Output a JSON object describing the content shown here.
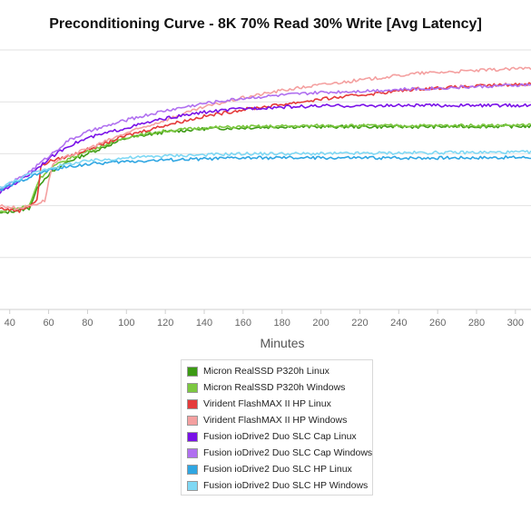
{
  "chart_data": {
    "type": "line",
    "title": "Preconditioning Curve - 8K 70% Read 30% Write [Avg Latency]",
    "xlabel": "Minutes",
    "ylabel": "",
    "x_ticks": [
      40,
      60,
      80,
      100,
      120,
      140,
      160,
      180,
      200,
      220,
      240,
      260,
      280,
      300
    ],
    "xlim": [
      35,
      308
    ],
    "ylim": [
      0,
      5
    ],
    "y_gridlines": [
      1,
      2,
      3,
      4,
      5
    ],
    "grid": "horizontal",
    "legend_position": "bottom",
    "series": [
      {
        "name": "Micron RealSSD P320h Linux",
        "color": "#3c9a14",
        "x": [
          35,
          50,
          55,
          60,
          70,
          80,
          100,
          120,
          140,
          160,
          180,
          200,
          250,
          308
        ],
        "y": [
          1.85,
          1.95,
          2.4,
          2.6,
          2.85,
          3.0,
          3.3,
          3.42,
          3.48,
          3.5,
          3.52,
          3.52,
          3.52,
          3.53
        ]
      },
      {
        "name": "Micron RealSSD P320h Windows",
        "color": "#7cc840",
        "x": [
          35,
          50,
          55,
          60,
          70,
          80,
          100,
          120,
          140,
          160,
          180,
          200,
          250,
          308
        ],
        "y": [
          1.88,
          2.0,
          2.5,
          2.7,
          2.9,
          3.05,
          3.32,
          3.44,
          3.5,
          3.52,
          3.53,
          3.54,
          3.54,
          3.55
        ]
      },
      {
        "name": "Virident FlashMAX II HP Linux",
        "color": "#e53a3a",
        "x": [
          35,
          45,
          50,
          54,
          56,
          60,
          70,
          80,
          100,
          120,
          140,
          160,
          180,
          200,
          250,
          308
        ],
        "y": [
          1.95,
          1.9,
          2.0,
          2.1,
          2.75,
          2.85,
          2.95,
          3.08,
          3.35,
          3.55,
          3.72,
          3.85,
          3.95,
          4.05,
          4.25,
          4.35
        ]
      },
      {
        "name": "Virident FlashMAX II HP Windows",
        "color": "#f4a0a0",
        "x": [
          35,
          45,
          55,
          58,
          62,
          70,
          80,
          100,
          120,
          140,
          160,
          180,
          200,
          250,
          308
        ],
        "y": [
          2.0,
          1.95,
          2.05,
          2.1,
          2.8,
          2.95,
          3.1,
          3.4,
          3.65,
          3.9,
          4.08,
          4.22,
          4.33,
          4.55,
          4.65
        ]
      },
      {
        "name": "Fusion ioDrive2 Duo SLC Cap Linux",
        "color": "#7a12e8",
        "x": [
          35,
          50,
          60,
          70,
          80,
          100,
          120,
          140,
          160,
          180,
          200,
          250,
          308
        ],
        "y": [
          2.25,
          2.6,
          2.9,
          3.15,
          3.3,
          3.5,
          3.68,
          3.8,
          3.87,
          3.9,
          3.92,
          3.93,
          3.93
        ]
      },
      {
        "name": "Fusion ioDrive2 Duo SLC Cap Windows",
        "color": "#b070f0",
        "x": [
          35,
          50,
          60,
          70,
          80,
          100,
          120,
          140,
          160,
          180,
          200,
          250,
          308
        ],
        "y": [
          2.3,
          2.65,
          2.95,
          3.25,
          3.42,
          3.65,
          3.83,
          3.97,
          4.07,
          4.13,
          4.18,
          4.25,
          4.33
        ]
      },
      {
        "name": "Fusion ioDrive2 Duo SLC HP Linux",
        "color": "#2fa6e2",
        "x": [
          35,
          50,
          60,
          70,
          80,
          100,
          120,
          140,
          160,
          200,
          250,
          308
        ],
        "y": [
          2.3,
          2.55,
          2.68,
          2.75,
          2.8,
          2.85,
          2.88,
          2.9,
          2.92,
          2.92,
          2.92,
          2.93
        ]
      },
      {
        "name": "Fusion ioDrive2 Duo SLC HP Windows",
        "color": "#7fd8f4",
        "x": [
          35,
          50,
          60,
          70,
          80,
          100,
          120,
          140,
          160,
          200,
          250,
          308
        ],
        "y": [
          2.35,
          2.6,
          2.72,
          2.8,
          2.86,
          2.92,
          2.96,
          2.98,
          3.0,
          3.0,
          3.02,
          3.03
        ]
      }
    ]
  }
}
